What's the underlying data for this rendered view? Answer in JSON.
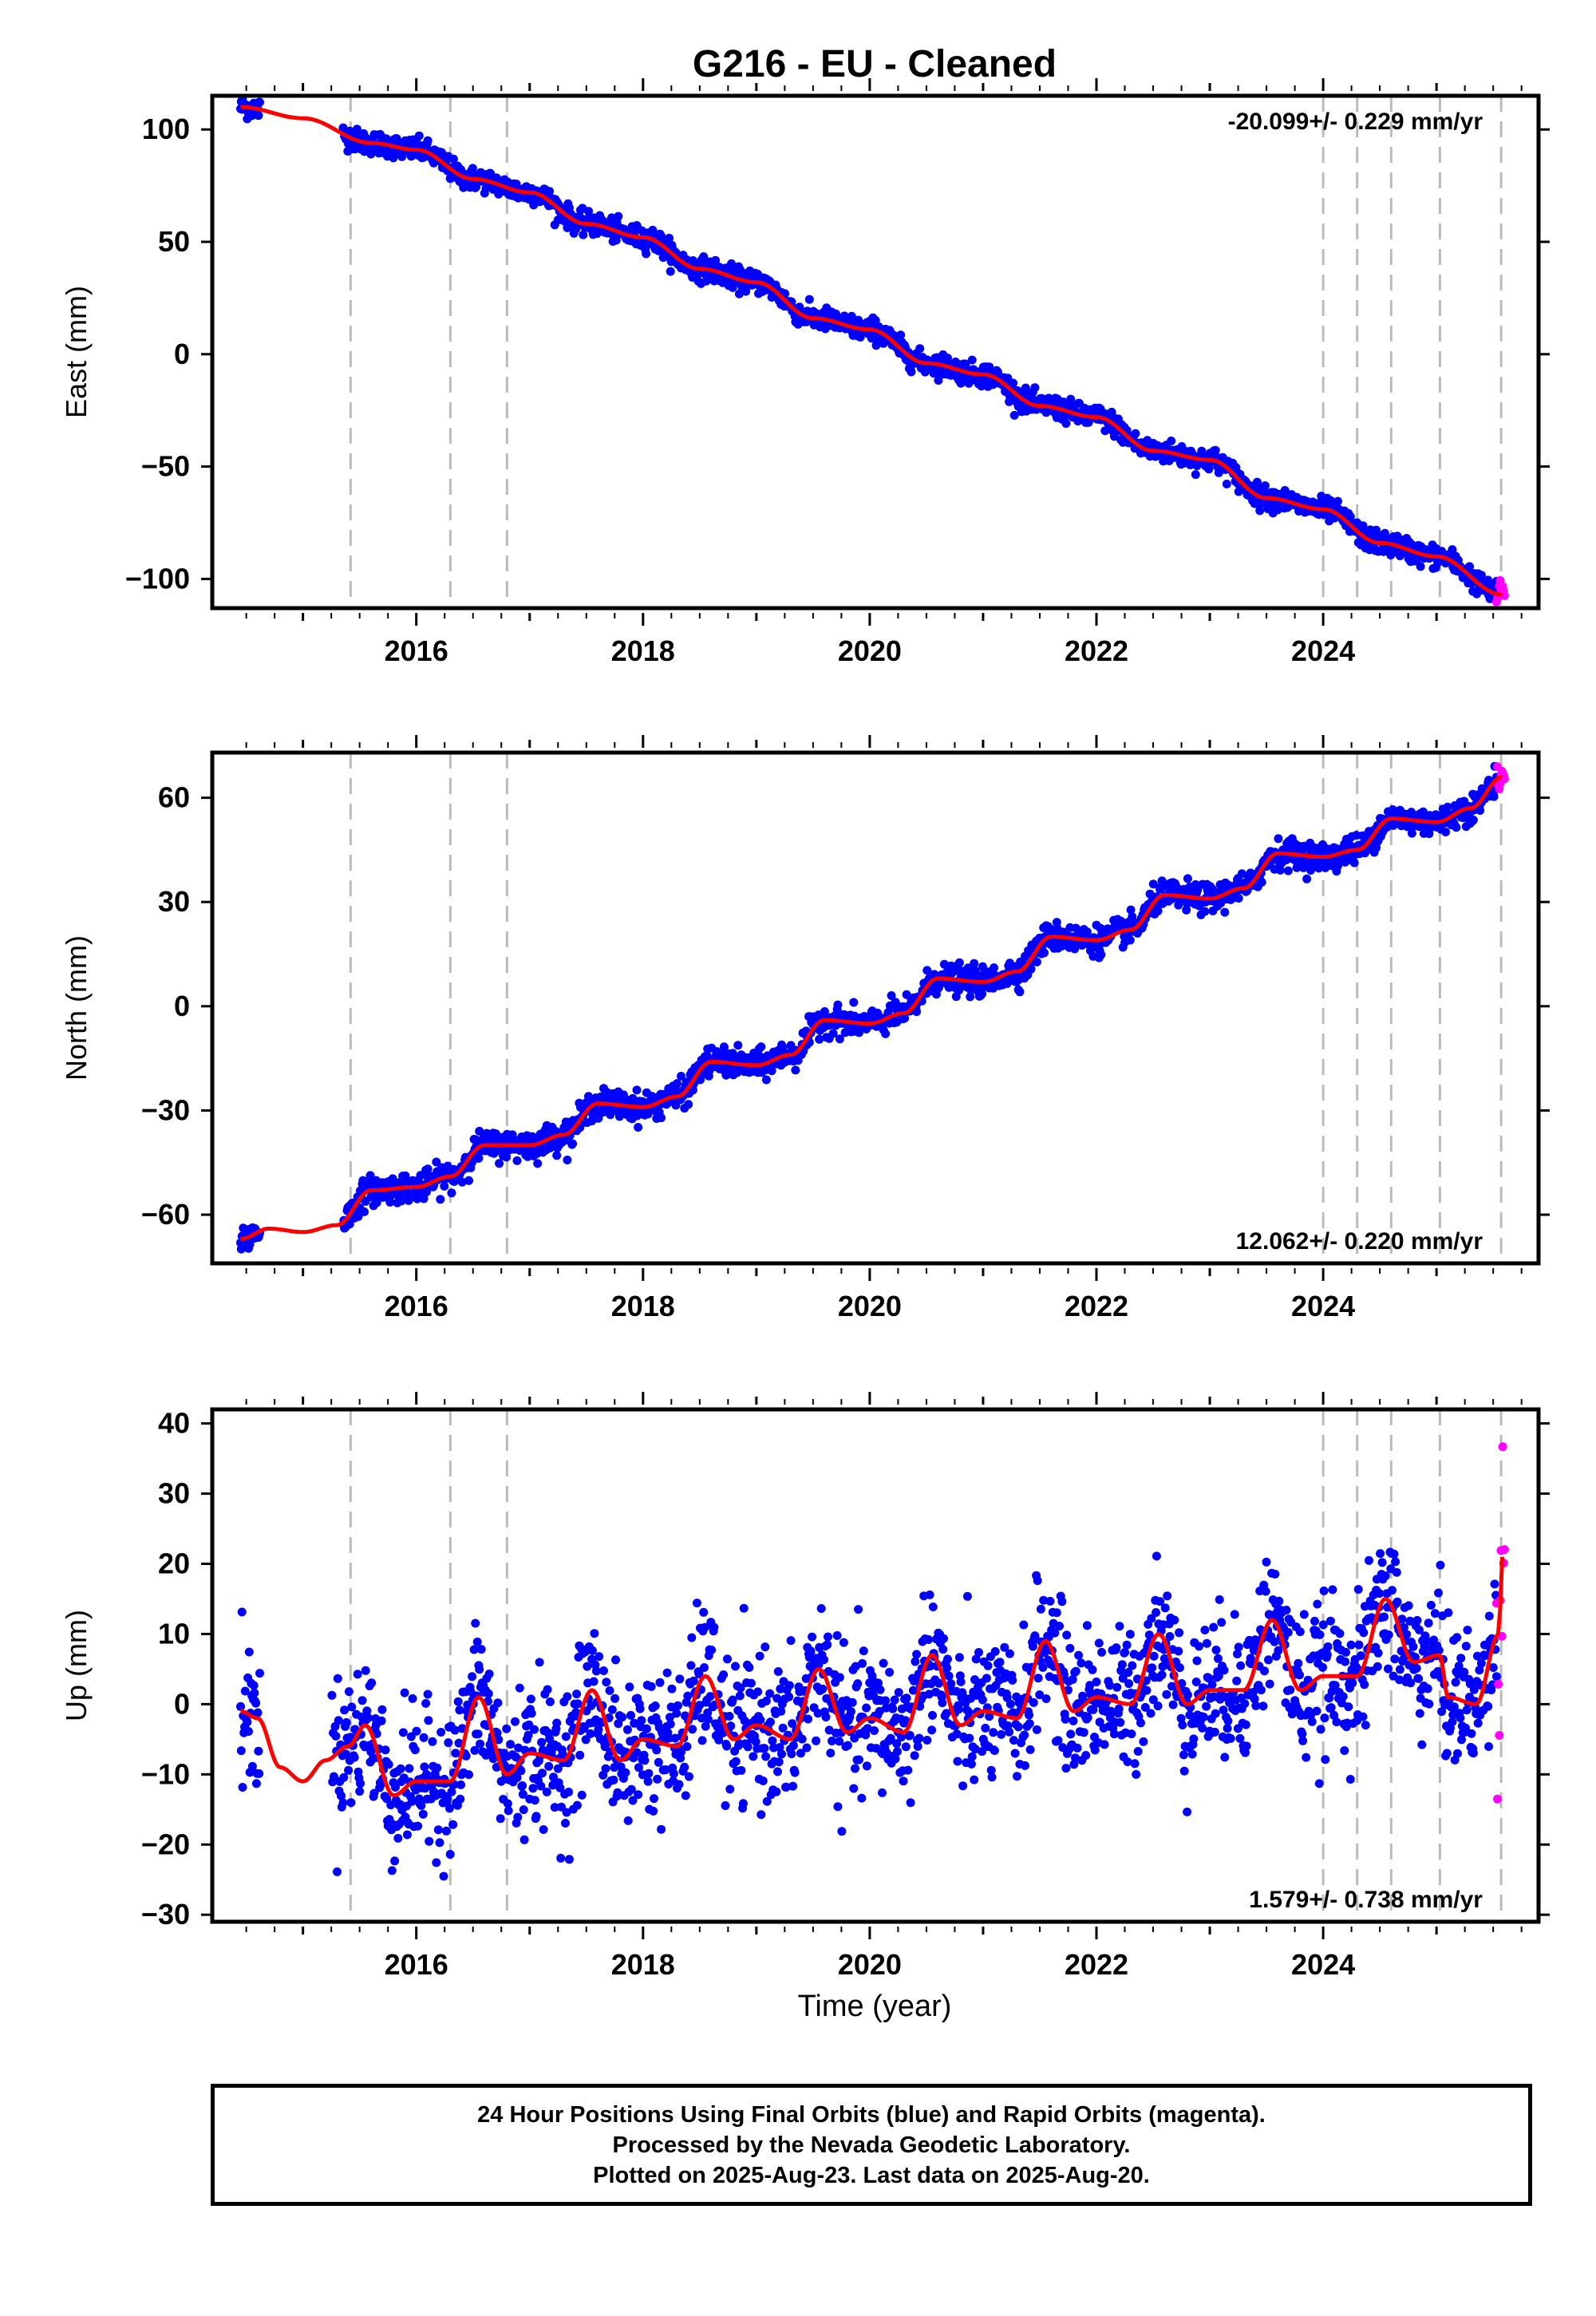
{
  "title": "G216  - EU - Cleaned",
  "xlabel": "Time (year)",
  "colors": {
    "final": "#0000ff",
    "rapid": "#ff00ff",
    "model": "#ff0000",
    "steps": "#bbbbbb"
  },
  "footer": {
    "line1": "24 Hour Positions Using Final Orbits (blue) and Rapid Orbits (magenta).",
    "line2": "Processed by the Nevada Geodetic Laboratory.",
    "line3": "Plotted on 2025-Aug-23. Last data on 2025-Aug-20."
  },
  "chart_data": [
    {
      "type": "scatter",
      "ylabel": "East (mm)",
      "rate_label": "-20.099+/- 0.229 mm/yr",
      "xlim": [
        2014.2,
        2025.9
      ],
      "ylim": [
        -113,
        115
      ],
      "yticks": [
        100,
        50,
        0,
        -50,
        -100
      ],
      "xticks": [
        2016,
        2018,
        2020,
        2022,
        2024
      ],
      "step_years": [
        2015.42,
        2016.3,
        2016.8,
        2024.0,
        2024.3,
        2024.6,
        2025.03,
        2025.57
      ],
      "model_knots": [
        [
          2014.45,
          110
        ],
        [
          2015.0,
          105
        ],
        [
          2015.6,
          94
        ],
        [
          2016.0,
          91
        ],
        [
          2016.5,
          78
        ],
        [
          2017.0,
          72
        ],
        [
          2017.5,
          58
        ],
        [
          2018.0,
          52
        ],
        [
          2018.5,
          38
        ],
        [
          2019.0,
          32
        ],
        [
          2019.5,
          16
        ],
        [
          2020.0,
          11
        ],
        [
          2020.5,
          -4
        ],
        [
          2021.0,
          -9
        ],
        [
          2021.5,
          -23
        ],
        [
          2022.0,
          -28
        ],
        [
          2022.5,
          -43
        ],
        [
          2023.0,
          -47
        ],
        [
          2023.5,
          -64
        ],
        [
          2024.0,
          -69
        ],
        [
          2024.5,
          -84
        ],
        [
          2025.0,
          -90
        ],
        [
          2025.58,
          -107
        ]
      ],
      "final_range": [
        2014.45,
        2025.53
      ],
      "rapid_range": [
        2025.53,
        2025.6
      ],
      "scatter_sd": 2.5,
      "gaps": [
        [
          2014.62,
          2015.35
        ]
      ]
    },
    {
      "type": "scatter",
      "ylabel": "North (mm)",
      "rate_label": "12.062+/- 0.220 mm/yr",
      "xlim": [
        2014.2,
        2025.9
      ],
      "ylim": [
        -74,
        73
      ],
      "yticks": [
        60,
        30,
        0,
        -30,
        -60
      ],
      "xticks": [
        2016,
        2018,
        2020,
        2022,
        2024
      ],
      "step_years": [
        2015.42,
        2016.3,
        2016.8,
        2024.0,
        2024.3,
        2024.6,
        2025.03,
        2025.57
      ],
      "model_knots": [
        [
          2014.45,
          -67
        ],
        [
          2014.7,
          -64
        ],
        [
          2015.0,
          -65
        ],
        [
          2015.3,
          -63
        ],
        [
          2015.6,
          -53
        ],
        [
          2016.0,
          -52
        ],
        [
          2016.3,
          -49
        ],
        [
          2016.6,
          -40
        ],
        [
          2017.0,
          -40
        ],
        [
          2017.3,
          -37
        ],
        [
          2017.6,
          -28
        ],
        [
          2018.0,
          -29
        ],
        [
          2018.3,
          -26
        ],
        [
          2018.6,
          -16
        ],
        [
          2019.0,
          -17
        ],
        [
          2019.3,
          -14
        ],
        [
          2019.6,
          -4
        ],
        [
          2020.0,
          -5
        ],
        [
          2020.3,
          -2
        ],
        [
          2020.6,
          8
        ],
        [
          2021.0,
          7
        ],
        [
          2021.3,
          10
        ],
        [
          2021.6,
          20
        ],
        [
          2022.0,
          19
        ],
        [
          2022.3,
          22
        ],
        [
          2022.6,
          32
        ],
        [
          2023.0,
          31
        ],
        [
          2023.3,
          34
        ],
        [
          2023.6,
          44
        ],
        [
          2024.0,
          43
        ],
        [
          2024.3,
          45
        ],
        [
          2024.6,
          54
        ],
        [
          2025.0,
          53
        ],
        [
          2025.3,
          57
        ],
        [
          2025.58,
          66
        ]
      ],
      "final_range": [
        2014.45,
        2025.53
      ],
      "rapid_range": [
        2025.53,
        2025.6
      ],
      "scatter_sd": 2.0,
      "gaps": [
        [
          2014.62,
          2015.35
        ]
      ]
    },
    {
      "type": "scatter",
      "ylabel": "Up (mm)",
      "rate_label": "1.579+/- 0.738 mm/yr",
      "xlim": [
        2014.2,
        2025.9
      ],
      "ylim": [
        -31,
        42
      ],
      "yticks": [
        40,
        30,
        20,
        10,
        0,
        -10,
        -20,
        -30
      ],
      "xticks": [
        2016,
        2018,
        2020,
        2022,
        2024
      ],
      "step_years": [
        2015.42,
        2016.3,
        2016.8,
        2024.0,
        2024.3,
        2024.6,
        2025.03,
        2025.57
      ],
      "model_knots": [
        [
          2014.45,
          -1
        ],
        [
          2014.6,
          -2
        ],
        [
          2014.8,
          -9
        ],
        [
          2015.0,
          -11
        ],
        [
          2015.2,
          -8
        ],
        [
          2015.4,
          -6
        ],
        [
          2015.55,
          -3
        ],
        [
          2015.8,
          -13
        ],
        [
          2016.0,
          -11
        ],
        [
          2016.3,
          -11
        ],
        [
          2016.55,
          1
        ],
        [
          2016.8,
          -10
        ],
        [
          2017.0,
          -7
        ],
        [
          2017.3,
          -8
        ],
        [
          2017.55,
          2
        ],
        [
          2017.8,
          -8
        ],
        [
          2018.0,
          -5
        ],
        [
          2018.3,
          -6
        ],
        [
          2018.55,
          4
        ],
        [
          2018.8,
          -5
        ],
        [
          2019.0,
          -3
        ],
        [
          2019.3,
          -5
        ],
        [
          2019.55,
          5
        ],
        [
          2019.8,
          -4
        ],
        [
          2020.0,
          -2
        ],
        [
          2020.3,
          -4
        ],
        [
          2020.55,
          7
        ],
        [
          2020.8,
          -3
        ],
        [
          2021.0,
          -1
        ],
        [
          2021.3,
          -2
        ],
        [
          2021.55,
          9
        ],
        [
          2021.8,
          -1
        ],
        [
          2022.0,
          1
        ],
        [
          2022.3,
          0
        ],
        [
          2022.55,
          10
        ],
        [
          2022.8,
          0
        ],
        [
          2023.0,
          2
        ],
        [
          2023.3,
          2
        ],
        [
          2023.55,
          12
        ],
        [
          2023.8,
          2
        ],
        [
          2024.0,
          4
        ],
        [
          2024.3,
          4
        ],
        [
          2024.55,
          15
        ],
        [
          2024.8,
          6
        ],
        [
          2025.03,
          7
        ],
        [
          2025.1,
          1
        ],
        [
          2025.35,
          0
        ],
        [
          2025.55,
          10
        ],
        [
          2025.58,
          21
        ]
      ],
      "final_range": [
        2014.45,
        2025.53
      ],
      "rapid_range": [
        2025.53,
        2025.6
      ],
      "scatter_sd": 5.0,
      "gaps": [
        [
          2014.62,
          2015.25
        ]
      ]
    }
  ]
}
